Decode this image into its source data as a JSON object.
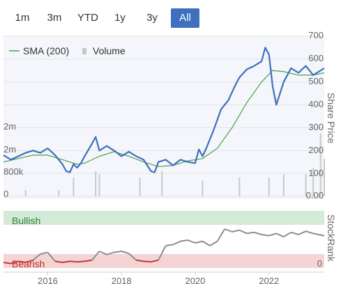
{
  "range_buttons": [
    {
      "label": "1m"
    },
    {
      "label": "3m"
    },
    {
      "label": "YTD"
    },
    {
      "label": "1y"
    },
    {
      "label": "3y"
    },
    {
      "label": "All"
    }
  ],
  "active_range": "All",
  "legend": {
    "sma_label": "SMA (200)",
    "volume_label": "Volume"
  },
  "colors": {
    "price_line": "#3f6fbf",
    "sma_line": "#4aa046",
    "volume_bar": "#c8c8c8",
    "bullish_band": "#d3ead7",
    "bearish_band": "#f4d4d4",
    "rank_grey": "#8c8c8c",
    "rank_red": "#c03838",
    "active_button": "#3f6fbf"
  },
  "chart_data": [
    {
      "type": "line",
      "y_axis_title": "Share Price",
      "y_ticks": [
        "700",
        "600",
        "500",
        "400",
        "300",
        "200",
        "100",
        "0.00"
      ],
      "ylim": [
        0,
        700
      ],
      "volume_ticks": [
        "2m",
        "2m",
        "800k",
        "0"
      ],
      "x_ticks": [
        "2016",
        "2018",
        "2020",
        "2022"
      ],
      "series": [
        {
          "name": "Price",
          "x": [
            2014.8,
            2015.0,
            2015.2,
            2015.4,
            2015.6,
            2015.8,
            2016.0,
            2016.2,
            2016.4,
            2016.5,
            2016.6,
            2016.7,
            2016.8,
            2016.9,
            2017.0,
            2017.2,
            2017.3,
            2017.4,
            2017.5,
            2017.6,
            2017.8,
            2018.0,
            2018.2,
            2018.4,
            2018.6,
            2018.8,
            2018.9,
            2019.0,
            2019.2,
            2019.4,
            2019.6,
            2019.8,
            2020.0,
            2020.1,
            2020.2,
            2020.3,
            2020.5,
            2020.7,
            2020.9,
            2021.1,
            2021.2,
            2021.4,
            2021.6,
            2021.8,
            2021.9,
            2022.0,
            2022.1,
            2022.2,
            2022.4,
            2022.6,
            2022.8,
            2023.0,
            2023.2,
            2023.5
          ],
          "y": [
            180,
            160,
            175,
            190,
            200,
            190,
            210,
            180,
            140,
            110,
            105,
            140,
            125,
            145,
            175,
            230,
            260,
            200,
            210,
            220,
            200,
            175,
            195,
            175,
            160,
            110,
            105,
            150,
            160,
            135,
            160,
            150,
            145,
            205,
            175,
            210,
            290,
            380,
            420,
            490,
            520,
            555,
            570,
            590,
            650,
            620,
            480,
            400,
            500,
            560,
            540,
            570,
            530,
            560
          ]
        },
        {
          "name": "SMA (200)",
          "x": [
            2014.8,
            2015.2,
            2015.6,
            2016.0,
            2016.4,
            2016.8,
            2017.0,
            2017.4,
            2017.8,
            2018.2,
            2018.6,
            2019.0,
            2019.4,
            2019.8,
            2020.2,
            2020.6,
            2021.0,
            2021.4,
            2021.8,
            2022.1,
            2022.4,
            2022.8,
            2023.2,
            2023.5
          ],
          "y": [
            150,
            165,
            180,
            180,
            160,
            140,
            145,
            175,
            195,
            175,
            150,
            130,
            135,
            155,
            165,
            210,
            300,
            410,
            500,
            550,
            545,
            530,
            530,
            540
          ]
        },
        {
          "name": "Volume",
          "x": [
            2015.4,
            2016.3,
            2016.7,
            2017.3,
            2017.4,
            2018.5,
            2019.1,
            2020.2,
            2021.2,
            2022.0,
            2022.4,
            2023.0,
            2023.2,
            2023.4,
            2023.5
          ],
          "y": [
            0.1,
            0.1,
            0.3,
            0.4,
            0.35,
            0.3,
            0.4,
            0.25,
            0.3,
            0.3,
            0.35,
            0.35,
            0.45,
            1.0,
            0.6
          ]
        }
      ]
    },
    {
      "type": "line",
      "y_axis_title": "StockRank",
      "y_ticks": [
        "0"
      ],
      "band_labels": {
        "bullish": "Bullish",
        "bearish": "Bearish"
      },
      "series": [
        {
          "name": "StockRank",
          "x": [
            2014.8,
            2015.0,
            2015.2,
            2015.4,
            2015.6,
            2015.8,
            2016.0,
            2016.2,
            2016.4,
            2016.6,
            2016.8,
            2017.0,
            2017.2,
            2017.4,
            2017.6,
            2017.8,
            2018.0,
            2018.2,
            2018.4,
            2018.6,
            2018.8,
            2019.0,
            2019.2,
            2019.4,
            2019.6,
            2019.8,
            2020.0,
            2020.2,
            2020.4,
            2020.6,
            2020.8,
            2021.0,
            2021.2,
            2021.4,
            2021.6,
            2021.8,
            2022.0,
            2022.2,
            2022.4,
            2022.6,
            2022.8,
            2023.0,
            2023.2,
            2023.5
          ],
          "y": [
            10,
            8,
            12,
            10,
            14,
            25,
            28,
            12,
            10,
            12,
            11,
            12,
            14,
            30,
            24,
            28,
            30,
            26,
            14,
            12,
            11,
            14,
            40,
            42,
            48,
            50,
            45,
            48,
            40,
            48,
            70,
            65,
            68,
            62,
            64,
            60,
            58,
            62,
            56,
            64,
            60,
            66,
            62,
            58
          ]
        }
      ]
    }
  ]
}
